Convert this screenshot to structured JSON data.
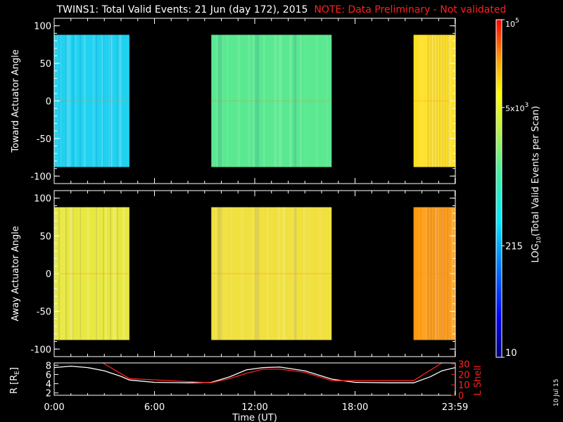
{
  "title": {
    "main": "TWINS1: Total Valid Events: 21 Jun (day 172), 2015",
    "note": "NOTE: Data Preliminary - Not validated"
  },
  "datestamp": "10 Jul 15",
  "chart_data": [
    {
      "type": "heatmap",
      "name": "toward",
      "ylabel": "Toward Actuator Angle",
      "ylim": [
        -110,
        110
      ],
      "yticks": [
        "100",
        "50",
        "0",
        "-50",
        "-100"
      ],
      "ytick_values": [
        100,
        50,
        0,
        -50,
        -100
      ],
      "data_angle_range": [
        -88,
        88
      ],
      "segments": [
        {
          "t_start": 0.0,
          "t_end": 4.5,
          "log_level": 0.45,
          "color": "#20d2f0"
        },
        {
          "t_start": 9.4,
          "t_end": 16.6,
          "log_level": 0.6,
          "color": "#5ae890"
        },
        {
          "t_start": 21.5,
          "t_end": 24.0,
          "log_level": 0.8,
          "color": "#ffe020"
        }
      ]
    },
    {
      "type": "heatmap",
      "name": "away",
      "ylabel": "Away Actuator Angle",
      "ylim": [
        -110,
        110
      ],
      "yticks": [
        "100",
        "50",
        "0",
        "-50",
        "-100"
      ],
      "ytick_values": [
        100,
        50,
        0,
        -50,
        -100
      ],
      "data_angle_range": [
        -88,
        88
      ],
      "segments": [
        {
          "t_start": 0.0,
          "t_end": 4.5,
          "log_level": 0.75,
          "color": "#e8e840"
        },
        {
          "t_start": 9.4,
          "t_end": 16.6,
          "log_level": 0.77,
          "color": "#f0e040"
        },
        {
          "t_start": 21.5,
          "t_end": 24.0,
          "log_level": 0.88,
          "color": "#ff9a10"
        }
      ]
    },
    {
      "type": "line",
      "name": "orbit",
      "ylabel_left": "R [R",
      "ylabel_left_sub": "E",
      "ylabel_left_end": "]",
      "ylabel_right": "L Shell",
      "yticks_left": [
        "8",
        "6",
        "4",
        "2"
      ],
      "ytick_left_values": [
        8,
        6,
        4,
        2
      ],
      "ylim_left": [
        1.5,
        8.5
      ],
      "yticks_right": [
        "30",
        "20",
        "10",
        "0"
      ],
      "ytick_right_values": [
        30,
        20,
        10,
        0
      ],
      "ylim_right": [
        0,
        31
      ],
      "xlabel": "Time (UT)",
      "xticks": [
        "0:00",
        "6:00",
        "12:00",
        "18:00",
        "23:59"
      ],
      "xtick_values": [
        0,
        6,
        12,
        18,
        23.98
      ],
      "xlim": [
        0,
        24
      ],
      "series": [
        {
          "name": "R",
          "color": "#ffffff",
          "x": [
            0,
            1,
            2,
            3,
            4,
            4.5,
            6,
            8,
            9.4,
            10.5,
            11.5,
            12.5,
            13.5,
            15,
            16.6,
            18,
            20,
            21.5,
            22.5,
            23.2,
            24
          ],
          "y": [
            7.5,
            7.8,
            7.5,
            6.8,
            5.6,
            4.8,
            4.3,
            4.2,
            4.3,
            5.5,
            7.0,
            7.5,
            7.6,
            6.8,
            5.0,
            4.3,
            4.2,
            4.2,
            5.5,
            6.8,
            7.5
          ]
        },
        {
          "name": "L Shell",
          "color": "#ff2020",
          "x": [
            2.9,
            4.5,
            9.4,
            10.5,
            11.5,
            12.5,
            13.5,
            15,
            16.6,
            18,
            20,
            21.5,
            23.2
          ],
          "y": [
            31,
            16,
            12,
            16,
            21,
            25,
            25,
            22,
            14,
            14,
            14,
            14,
            31
          ]
        }
      ]
    }
  ],
  "colorbar": {
    "label": "LOG",
    "label_sub": "10",
    "label_rest": "(Total Valid Events per Scan)",
    "ticks": [
      {
        "base": "10",
        "exp": "5",
        "mult": "",
        "frac": 1.0
      },
      {
        "base": "10",
        "exp": "3",
        "mult": "5x",
        "frac": 0.74
      },
      {
        "base": "215",
        "exp": "",
        "mult": "",
        "frac": 0.33
      },
      {
        "base": "10",
        "exp": "",
        "mult": "",
        "frac": 0.0
      }
    ]
  }
}
